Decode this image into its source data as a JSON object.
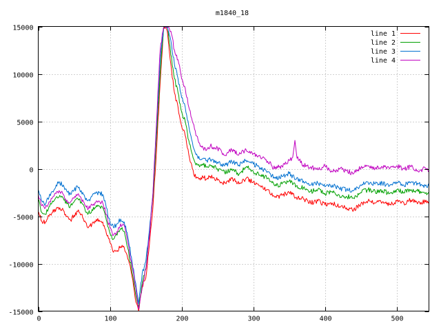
{
  "chart_data": {
    "type": "line",
    "title": "m1840_18",
    "xlabel": "",
    "ylabel": "",
    "xlim": [
      0,
      545
    ],
    "ylim": [
      -15000,
      15000
    ],
    "x_ticks": [
      0,
      100,
      200,
      300,
      400,
      500
    ],
    "y_ticks": [
      -15000,
      -10000,
      -5000,
      0,
      5000,
      10000,
      15000
    ],
    "x_tick_labels": [
      "0",
      "100",
      "200",
      "300",
      "400",
      "500"
    ],
    "y_tick_labels": [
      "-15000",
      "-10000",
      "-5000",
      "0",
      "5000",
      "10000",
      "15000"
    ],
    "grid": true,
    "legend_position": "top-right",
    "series": [
      {
        "name": "line 1",
        "color": "#ff0000",
        "x": [
          0,
          5,
          10,
          15,
          20,
          25,
          30,
          35,
          40,
          45,
          50,
          55,
          60,
          65,
          70,
          75,
          80,
          85,
          90,
          95,
          100,
          105,
          110,
          115,
          120,
          125,
          130,
          135,
          140,
          145,
          150,
          155,
          160,
          165,
          170,
          175,
          180,
          185,
          190,
          195,
          200,
          205,
          210,
          215,
          220,
          225,
          230,
          235,
          240,
          250,
          260,
          270,
          280,
          290,
          300,
          310,
          320,
          330,
          340,
          350,
          360,
          370,
          380,
          390,
          400,
          410,
          420,
          430,
          440,
          450,
          460,
          470,
          480,
          490,
          500,
          510,
          520,
          530,
          540,
          545
        ],
        "values": [
          -4500,
          -5500,
          -5600,
          -5000,
          -4600,
          -4200,
          -4100,
          -4400,
          -5000,
          -5400,
          -4900,
          -4500,
          -4800,
          -5500,
          -6200,
          -5800,
          -5600,
          -5400,
          -5600,
          -6800,
          -7800,
          -8800,
          -8600,
          -8200,
          -8300,
          -9500,
          -11000,
          -13500,
          -15000,
          -12500,
          -11500,
          -8000,
          -4000,
          2000,
          9000,
          15000,
          14500,
          11000,
          8000,
          6500,
          4500,
          3500,
          1500,
          0,
          -1000,
          -1000,
          -900,
          -1100,
          -800,
          -1200,
          -1500,
          -1000,
          -1600,
          -1000,
          -1400,
          -1800,
          -2200,
          -3000,
          -2800,
          -2500,
          -3000,
          -3200,
          -3600,
          -3400,
          -3800,
          -3600,
          -4000,
          -4100,
          -4300,
          -3700,
          -3400,
          -3600,
          -3500,
          -3800,
          -3400,
          -3600,
          -3300,
          -3500,
          -3500,
          -3500
        ]
      },
      {
        "name": "line 2",
        "color": "#00a000",
        "x": [
          0,
          5,
          10,
          15,
          20,
          25,
          30,
          35,
          40,
          45,
          50,
          55,
          60,
          65,
          70,
          75,
          80,
          85,
          90,
          95,
          100,
          105,
          110,
          115,
          120,
          125,
          130,
          135,
          140,
          145,
          150,
          155,
          160,
          165,
          170,
          175,
          180,
          185,
          190,
          195,
          200,
          205,
          210,
          215,
          220,
          225,
          230,
          235,
          240,
          250,
          260,
          270,
          280,
          290,
          300,
          310,
          320,
          330,
          340,
          350,
          360,
          370,
          380,
          390,
          400,
          410,
          420,
          430,
          440,
          450,
          460,
          470,
          480,
          490,
          500,
          510,
          520,
          530,
          540,
          545
        ],
        "values": [
          -3200,
          -4600,
          -4800,
          -4000,
          -3400,
          -3000,
          -2800,
          -3100,
          -3700,
          -3900,
          -3500,
          -3100,
          -3500,
          -4200,
          -4700,
          -4300,
          -4100,
          -3900,
          -4100,
          -5400,
          -6800,
          -7400,
          -7000,
          -6300,
          -6600,
          -8400,
          -10500,
          -12800,
          -14600,
          -12000,
          -10500,
          -7000,
          -3000,
          3500,
          10000,
          15000,
          15000,
          12000,
          9500,
          8000,
          6000,
          5000,
          3000,
          1500,
          400,
          200,
          400,
          200,
          400,
          0,
          -400,
          0,
          -600,
          200,
          -300,
          -700,
          -1000,
          -1800,
          -1600,
          -1300,
          -1800,
          -2000,
          -2400,
          -2200,
          -2600,
          -2400,
          -2800,
          -2900,
          -3100,
          -2500,
          -2200,
          -2400,
          -2300,
          -2600,
          -2200,
          -2500,
          -2200,
          -2400,
          -2600,
          -2600
        ]
      },
      {
        "name": "line 3",
        "color": "#0070d0",
        "x": [
          0,
          5,
          10,
          15,
          20,
          25,
          30,
          35,
          40,
          45,
          50,
          55,
          60,
          65,
          70,
          75,
          80,
          85,
          90,
          95,
          100,
          105,
          110,
          115,
          120,
          125,
          130,
          135,
          140,
          145,
          150,
          155,
          160,
          165,
          170,
          175,
          180,
          185,
          190,
          195,
          200,
          205,
          210,
          215,
          220,
          225,
          230,
          235,
          240,
          250,
          260,
          270,
          280,
          290,
          300,
          310,
          320,
          330,
          340,
          350,
          360,
          370,
          380,
          390,
          400,
          410,
          420,
          430,
          440,
          450,
          460,
          470,
          480,
          490,
          500,
          510,
          520,
          530,
          540,
          545
        ],
        "values": [
          -2200,
          -3400,
          -3700,
          -3000,
          -2400,
          -1700,
          -1500,
          -1700,
          -2400,
          -2700,
          -2300,
          -1900,
          -2300,
          -3000,
          -3300,
          -2900,
          -2600,
          -2500,
          -2700,
          -4100,
          -5600,
          -6200,
          -5800,
          -5300,
          -5600,
          -7200,
          -9300,
          -11800,
          -14200,
          -11000,
          -9800,
          -6500,
          -2500,
          4500,
          11500,
          15000,
          15000,
          13500,
          11000,
          9500,
          7500,
          6500,
          4500,
          2800,
          1500,
          1000,
          1100,
          900,
          1000,
          700,
          300,
          800,
          400,
          900,
          500,
          100,
          -300,
          -1000,
          -800,
          -500,
          -1100,
          -1300,
          -1700,
          -1500,
          -1900,
          -1700,
          -2100,
          -2200,
          -2300,
          -1700,
          -1400,
          -1600,
          -1500,
          -1800,
          -1400,
          -1700,
          -1400,
          -1600,
          -1800,
          -1800
        ]
      },
      {
        "name": "line 4",
        "color": "#c000c0",
        "x": [
          0,
          5,
          10,
          15,
          20,
          25,
          30,
          35,
          40,
          45,
          50,
          55,
          60,
          65,
          70,
          75,
          80,
          85,
          90,
          95,
          100,
          105,
          110,
          115,
          120,
          125,
          130,
          135,
          140,
          145,
          150,
          155,
          160,
          165,
          170,
          175,
          180,
          185,
          190,
          195,
          200,
          205,
          210,
          215,
          220,
          225,
          230,
          235,
          240,
          250,
          260,
          270,
          280,
          290,
          300,
          310,
          320,
          330,
          340,
          350,
          355,
          358,
          361,
          364,
          370,
          380,
          390,
          400,
          410,
          420,
          430,
          440,
          450,
          460,
          470,
          480,
          490,
          500,
          510,
          520,
          530,
          540,
          545
        ],
        "values": [
          -2700,
          -3900,
          -4100,
          -3500,
          -3000,
          -2600,
          -2400,
          -2700,
          -3300,
          -3500,
          -3100,
          -2700,
          -3100,
          -3800,
          -4200,
          -3800,
          -3600,
          -3400,
          -3600,
          -4800,
          -6200,
          -7000,
          -6600,
          -5800,
          -6000,
          -7800,
          -9800,
          -12200,
          -14800,
          -12400,
          -10600,
          -7200,
          -2600,
          5000,
          12500,
          15000,
          15000,
          14500,
          12500,
          11500,
          9500,
          8500,
          6500,
          5000,
          3500,
          2700,
          2200,
          2000,
          2400,
          2200,
          1400,
          2000,
          1500,
          2000,
          1600,
          1200,
          800,
          0,
          300,
          900,
          1200,
          3000,
          1100,
          900,
          400,
          200,
          -100,
          300,
          -300,
          0,
          -200,
          -500,
          100,
          300,
          0,
          200,
          0,
          300,
          0,
          200,
          -300,
          100,
          -300
        ]
      }
    ]
  }
}
